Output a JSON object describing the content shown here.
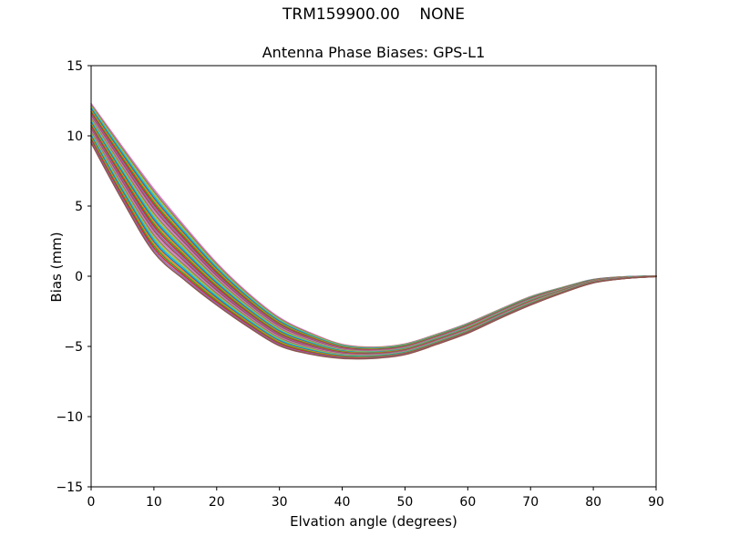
{
  "figure": {
    "suptitle": "TRM159900.00    NONE",
    "title": "Antenna Phase Biases: GPS-L1",
    "xlabel": "Elvation angle (degrees)",
    "ylabel": "Bias (mm)",
    "background_color": "#ffffff",
    "spine_color": "#000000"
  },
  "chart_data": {
    "type": "line",
    "suptitle": "TRM159900.00    NONE",
    "title": "Antenna Phase Biases: GPS-L1",
    "xlabel": "Elvation angle (degrees)",
    "ylabel": "Bias (mm)",
    "xlim": [
      0,
      90
    ],
    "ylim": [
      -15,
      15
    ],
    "x_ticks": [
      0,
      10,
      20,
      30,
      40,
      50,
      60,
      70,
      80,
      90
    ],
    "y_ticks": [
      -15,
      -10,
      -5,
      0,
      5,
      10,
      15
    ],
    "x_tick_labels": [
      "0",
      "10",
      "20",
      "30",
      "40",
      "50",
      "60",
      "70",
      "80",
      "90"
    ],
    "y_tick_labels": [
      "−15",
      "−10",
      "−5",
      "0",
      "5",
      "10",
      "15"
    ],
    "grid": false,
    "legend": "none",
    "description": "Bundle of per-satellite antenna phase bias curves vs elevation; all series share a common shape with small vertical offsets, dipping to about -5.5 mm near 40-45 deg and converging to 0 mm at 90 deg",
    "x": [
      0,
      5,
      10,
      15,
      20,
      25,
      30,
      35,
      40,
      45,
      50,
      55,
      60,
      65,
      70,
      75,
      80,
      85,
      90
    ],
    "base_curve_mm": [
      10.9,
      7.3,
      3.95,
      1.6,
      -0.55,
      -2.4,
      -3.95,
      -4.8,
      -5.35,
      -5.45,
      -5.2,
      -4.5,
      -3.7,
      -2.7,
      -1.75,
      -1.0,
      -0.35,
      -0.1,
      0.0
    ],
    "spread_half_mm": [
      1.4,
      1.9,
      2.25,
      1.9,
      1.5,
      1.2,
      1.0,
      0.75,
      0.5,
      0.4,
      0.38,
      0.36,
      0.35,
      0.32,
      0.3,
      0.2,
      0.12,
      0.06,
      0.02
    ],
    "num_series": 30,
    "series_offsets": [
      1.0,
      0.931,
      0.862,
      0.793,
      0.724,
      0.655,
      0.586,
      0.517,
      0.448,
      0.379,
      0.31,
      0.241,
      0.172,
      0.103,
      0.034,
      -0.034,
      -0.103,
      -0.172,
      -0.241,
      -0.31,
      -0.379,
      -0.448,
      -0.517,
      -0.586,
      -0.655,
      -0.724,
      -0.793,
      -0.862,
      -0.931,
      -1.0
    ],
    "palette": [
      "#e377c2",
      "#7f7f7f",
      "#bcbd22",
      "#17becf",
      "#1f77b4",
      "#ff7f0e",
      "#2ca02c",
      "#d62728",
      "#9467bd",
      "#8c564b"
    ],
    "line_width": 1.5,
    "tick_length": 4
  }
}
